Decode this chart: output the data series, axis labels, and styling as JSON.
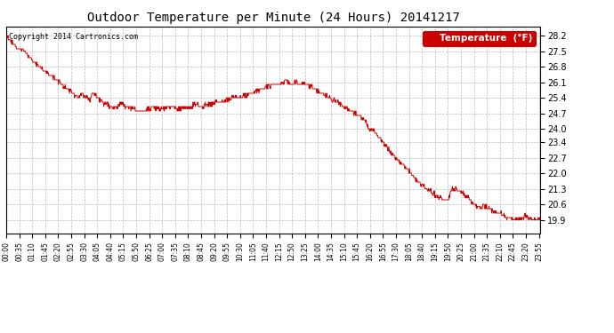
{
  "title": "Outdoor Temperature per Minute (24 Hours) 20141217",
  "legend_label": "Temperature  (°F)",
  "copyright_text": "Copyright 2014 Cartronics.com",
  "line_color": "#cc0000",
  "bg_color": "#ffffff",
  "grid_color": "#aaaaaa",
  "yticks": [
    19.9,
    20.6,
    21.3,
    22.0,
    22.7,
    23.4,
    24.0,
    24.7,
    25.4,
    26.1,
    26.8,
    27.5,
    28.2
  ],
  "ylim": [
    19.3,
    28.6
  ],
  "total_minutes": 1440,
  "xtick_interval": 35,
  "figsize": [
    6.9,
    3.75
  ],
  "dpi": 100
}
